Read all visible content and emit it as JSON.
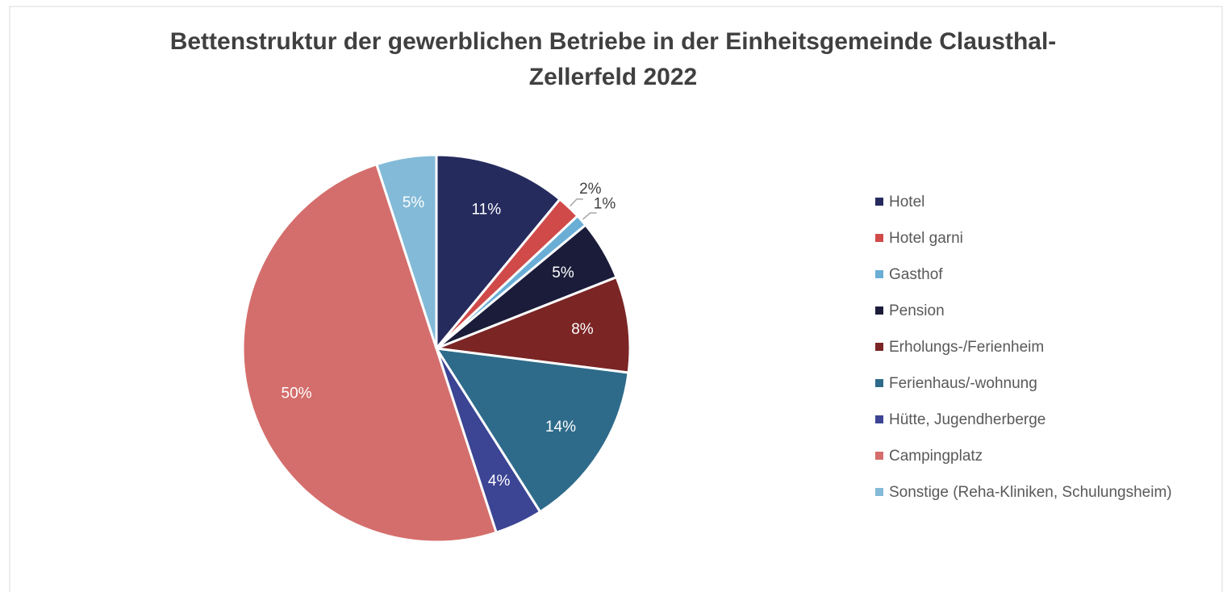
{
  "chart_data": {
    "type": "pie",
    "title": "Bettenstruktur der gewerblichen Betriebe in der Einheitsgemeinde Clausthal-Zellerfeld 2022",
    "categories": [
      "Hotel",
      "Hotel garni",
      "Gasthof",
      "Pension",
      "Erholungs-/Ferienheim",
      "Ferienhaus/-wohnung",
      "Hütte, Jugendherberge",
      "Campingplatz",
      "Sonstige (Reha-Kliniken, Schulungsheim)"
    ],
    "values": [
      11,
      2,
      1,
      5,
      8,
      14,
      4,
      50,
      5
    ],
    "value_labels": [
      "11%",
      "2%",
      "1%",
      "5%",
      "8%",
      "14%",
      "4%",
      "50%",
      "5%"
    ],
    "colors": [
      "#262b5e",
      "#d04a4a",
      "#6aaed6",
      "#1b1c3a",
      "#7b2525",
      "#2e6b8a",
      "#3c4494",
      "#d46e6c",
      "#83bad8"
    ],
    "legend": "right"
  }
}
